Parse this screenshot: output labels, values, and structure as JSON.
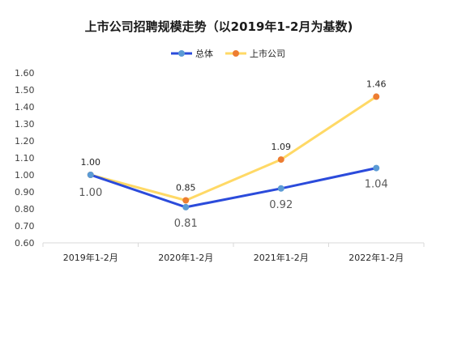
{
  "chart_data": {
    "type": "line",
    "title": "上市公司招聘规模走势（以2019年1-2月为基数)",
    "xlabel": "",
    "ylabel": "",
    "categories": [
      "2019年1-2月",
      "2020年1-2月",
      "2021年1-2月",
      "2022年1-2月"
    ],
    "ylim": [
      0.6,
      1.6
    ],
    "yticks": [
      "0.60",
      "0.70",
      "0.80",
      "0.90",
      "1.00",
      "1.10",
      "1.20",
      "1.30",
      "1.40",
      "1.50",
      "1.60"
    ],
    "grid": false,
    "legend_position": "top-center",
    "series": [
      {
        "name": "总体",
        "values": [
          1.0,
          0.81,
          0.92,
          1.04
        ],
        "labels": [
          "1.00",
          "0.81",
          "0.92",
          "1.04"
        ],
        "line_color": "#2b4bdb",
        "marker_color": "#5b9bd5",
        "label_color": "#595959"
      },
      {
        "name": "上市公司",
        "values": [
          1.0,
          0.85,
          1.09,
          1.46
        ],
        "labels": [
          "1.00",
          "0.85",
          "1.09",
          "1.46"
        ],
        "line_color": "#ffd966",
        "marker_color": "#ed7d31",
        "label_color": "#262626"
      }
    ]
  }
}
